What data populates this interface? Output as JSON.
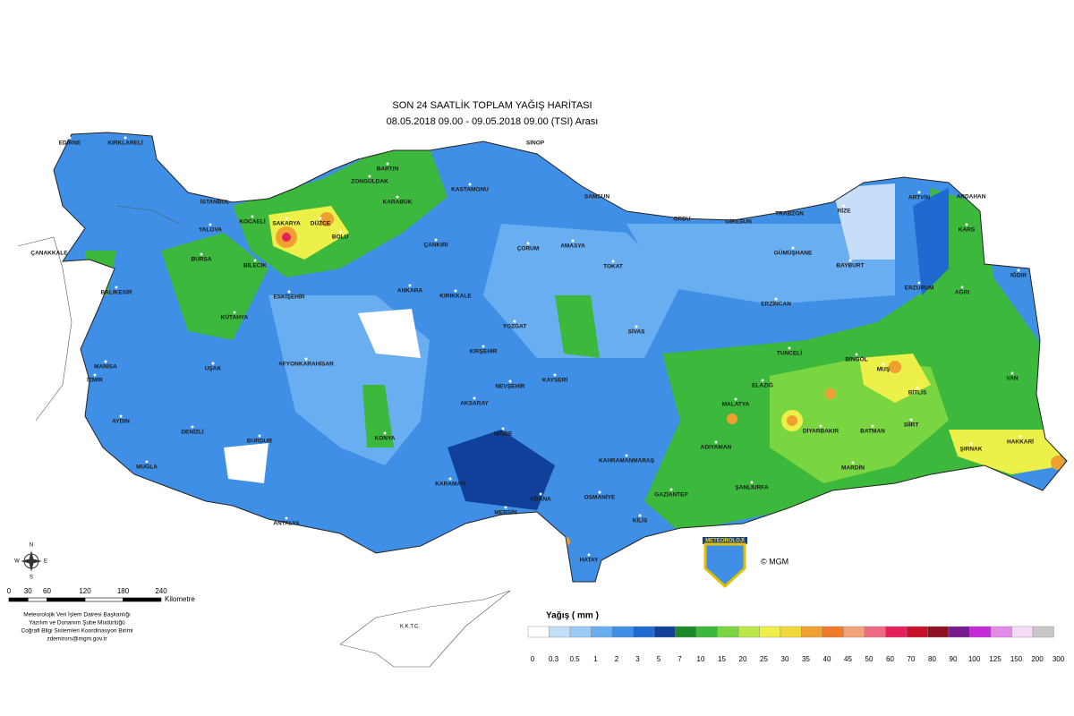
{
  "title": "SON 24 SAATLİK TOPLAM YAĞIŞ HARİTASI",
  "subtitle": "08.05.2018 09.00 - 09.05.2018 09.00 (TSI) Arası",
  "cities": [
    "EDİRNE",
    "KIRKLARELİ",
    "İSTANBUL",
    "ÇANAKKALE",
    "BALIKESİR",
    "BURSA",
    "YALOVA",
    "KOCAELİ",
    "SAKARYA",
    "DÜZCE",
    "BOLU",
    "ZONGULDAK",
    "BARTIN",
    "KARABÜK",
    "KASTAMONU",
    "SİNOP",
    "SAMSUN",
    "ÇANKIRI",
    "ÇORUM",
    "AMASYA",
    "ORDU",
    "GİRESUN",
    "TRABZON",
    "RİZE",
    "ARTVİN",
    "ARDAHAN",
    "KARS",
    "TOKAT",
    "GÜMÜŞHANE",
    "BAYBURT",
    "ERZURUM",
    "AĞRI",
    "IĞDIR",
    "BİLECİK",
    "ESKİŞEHİR",
    "KÜTAHYA",
    "ANKARA",
    "KIRIKKALE",
    "YOZGAT",
    "SİVAS",
    "ERZİNCAN",
    "TUNCELİ",
    "BİNGÖL",
    "MUŞ",
    "VAN",
    "BİTLİS",
    "ELAZIĞ",
    "MALATYA",
    "DİYARBAKIR",
    "BATMAN",
    "SİİRT",
    "ŞIRNAK",
    "HAKKARİ",
    "MARDİN",
    "ADIYAMAN",
    "ŞANLIURFA",
    "GAZİANTEP",
    "KİLİS",
    "OSMANİYE",
    "HATAY",
    "ADANA",
    "MERSİN",
    "KAHRAMANMARAŞ",
    "KAYSERİ",
    "NEVŞEHİR",
    "KIRŞEHİR",
    "AKSARAY",
    "NİĞDE",
    "KARAMAN",
    "KONYA",
    "AFYONKARAHİSAR",
    "UŞAK",
    "MANİSA",
    "İZMİR",
    "AYDIN",
    "DENİZLİ",
    "MUĞLA",
    "BURDUR",
    "ANTALYA"
  ],
  "legend": {
    "title": "Yağış ( mm )",
    "breaks": [
      0,
      0.3,
      0.5,
      1,
      2,
      3,
      5,
      7,
      10,
      15,
      20,
      25,
      30,
      35,
      40,
      45,
      50,
      60,
      70,
      80,
      90,
      100,
      125,
      150,
      200,
      300
    ],
    "colors": [
      "#ffffff",
      "#c6def8",
      "#9ccaf6",
      "#6aaef2",
      "#3f8fe6",
      "#1f6ad0",
      "#10409a",
      "#1a8a2a",
      "#3cb83c",
      "#7ad640",
      "#bce84a",
      "#eef04a",
      "#f2d83a",
      "#f0a030",
      "#f07a2a",
      "#f4a27a",
      "#f06a82",
      "#e8205a",
      "#c8102a",
      "#900f22",
      "#7a1a90",
      "#c42ad8",
      "#e28ae8",
      "#f6dcf6",
      "#c8c8c8"
    ]
  },
  "scale": {
    "ticks": [
      0,
      30,
      60,
      120,
      180,
      240
    ],
    "unit": "Kilometre"
  },
  "compass": [
    "N",
    "E",
    "S",
    "W"
  ],
  "credits": [
    "Meteorolojik Veri İşlem Dairesi Başkanlığı",
    "Yazılım ve Donanım Şube Müdürlüğü",
    "Coğrafi Bilgi Sistemleri Koordinasyon Birimi",
    "zdemirors@mgm.gov.tr"
  ],
  "logo": "METEOROLOJİ",
  "copyright": "© MGM",
  "cyprus_label": "K.K.T.C."
}
